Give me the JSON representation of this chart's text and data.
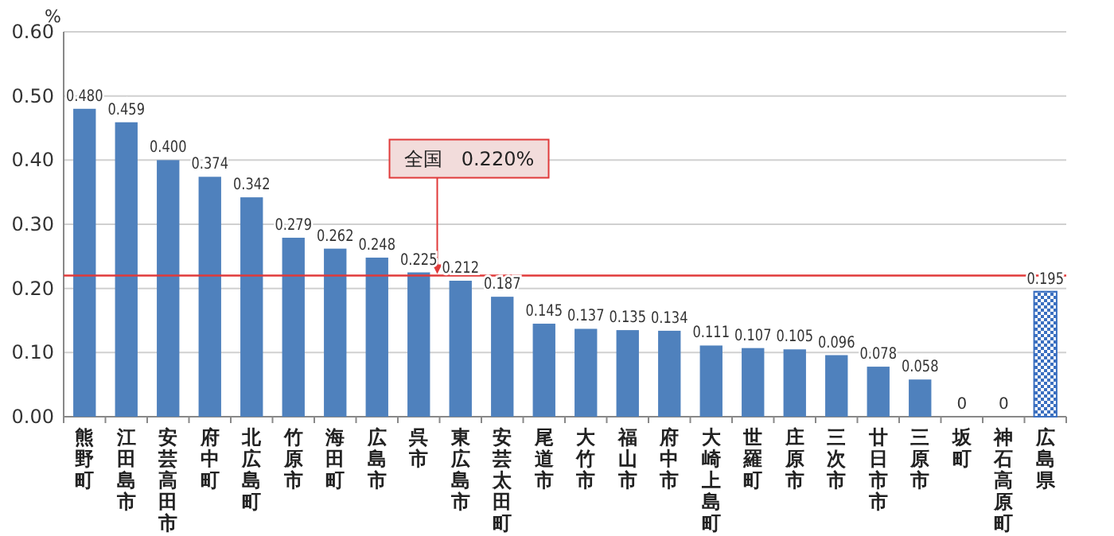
{
  "chart_data": {
    "type": "bar",
    "ylabel": "%",
    "categories": [
      "熊野町",
      "江田島市",
      "安芸高田市",
      "府中町",
      "北広島町",
      "竹原市",
      "海田町",
      "広島市",
      "呉市",
      "東広島市",
      "安芸太田町",
      "尾道市",
      "大竹市",
      "福山市",
      "府中市",
      "大崎上島町",
      "世羅町",
      "庄原市",
      "三次市",
      "廿日市市",
      "三原市",
      "坂町",
      "神石高原町",
      "広島県"
    ],
    "values": [
      0.48,
      0.459,
      0.4,
      0.374,
      0.342,
      0.279,
      0.262,
      0.248,
      0.225,
      0.212,
      0.187,
      0.145,
      0.137,
      0.135,
      0.134,
      0.111,
      0.107,
      0.105,
      0.096,
      0.078,
      0.058,
      0,
      0,
      0.195
    ],
    "value_labels": [
      "0.480",
      "0.459",
      "0.400",
      "0.374",
      "0.342",
      "0.279",
      "0.262",
      "0.248",
      "0.225",
      "0.212",
      "0.187",
      "0.145",
      "0.137",
      "0.135",
      "0.134",
      "0.111",
      "0.107",
      "0.105",
      "0.096",
      "0.078",
      "0.058",
      "0",
      "0",
      "0.195"
    ],
    "colors": [
      "#4f81bd",
      "#4f81bd",
      "#4f81bd",
      "#4f81bd",
      "#4f81bd",
      "#4f81bd",
      "#4f81bd",
      "#4f81bd",
      "#4f81bd",
      "#4f81bd",
      "#4f81bd",
      "#4f81bd",
      "#4f81bd",
      "#4f81bd",
      "#4f81bd",
      "#4f81bd",
      "#4f81bd",
      "#4f81bd",
      "#4f81bd",
      "#4f81bd",
      "#4f81bd",
      "#4f81bd",
      "#4f81bd",
      "#3a6fc0"
    ],
    "ylim": [
      0,
      0.6
    ],
    "yticks": [
      {
        "value": 0,
        "label": "0.00"
      },
      {
        "value": 0.1,
        "label": "0.10"
      },
      {
        "value": 0.2,
        "label": "0.20"
      },
      {
        "value": 0.3,
        "label": "0.30"
      },
      {
        "value": 0.4,
        "label": "0.40"
      },
      {
        "value": 0.5,
        "label": "0.50"
      },
      {
        "value": 0.6,
        "label": "0.60"
      }
    ],
    "grid": "y",
    "ref_lines": [
      {
        "axis": "y",
        "value": 0.22,
        "label": "全国　0.220%",
        "color": "#e03a3a"
      }
    ]
  }
}
